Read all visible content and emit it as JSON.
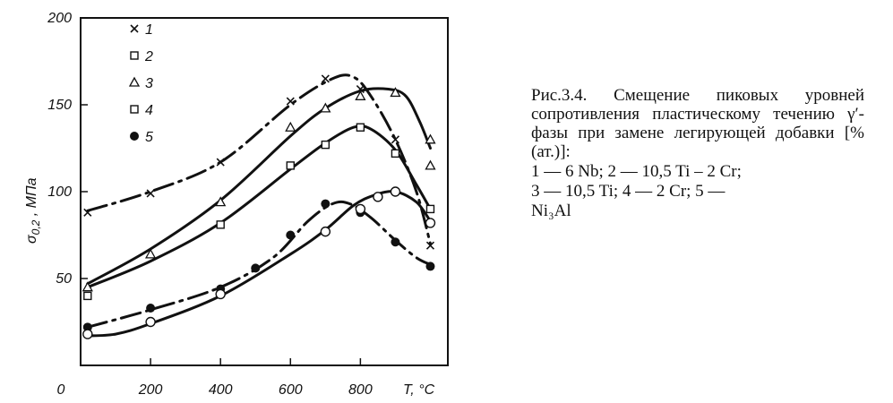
{
  "figure": {
    "caption_title": "Рис.3.4. Смещение пиковых уровней сопротивления пласти­ческому течению γ′-фазы при замене легирующей добавки [% (ат.)]:",
    "caption_legend_1": "1 —  6 Nb;  2 —  10,5 Ti – 2 Cr;",
    "caption_legend_2": "3 —  10,5 Ti;  4 —  2 Cr;  5 —",
    "caption_legend_3": "Ni₃Al"
  },
  "chart_data": {
    "type": "scatter",
    "xlabel": "T, °C",
    "ylabel": "σ0,2 , МПа",
    "xlim": [
      0,
      1050
    ],
    "ylim": [
      0,
      200
    ],
    "x_ticks": [
      "0",
      "200",
      "400",
      "600",
      "800"
    ],
    "y_ticks": [
      "50",
      "100",
      "150",
      "200"
    ],
    "legend_position": "top-left",
    "series": [
      {
        "name": "1",
        "marker": "x",
        "curve": "dash",
        "points": [
          [
            20,
            88
          ],
          [
            200,
            99
          ],
          [
            400,
            117
          ],
          [
            600,
            152
          ],
          [
            700,
            165
          ],
          [
            800,
            159
          ],
          [
            900,
            130
          ],
          [
            1000,
            69
          ]
        ],
        "curve_points": [
          [
            20,
            89
          ],
          [
            200,
            100
          ],
          [
            400,
            117
          ],
          [
            600,
            150
          ],
          [
            720,
            165
          ],
          [
            780,
            166
          ],
          [
            830,
            155
          ],
          [
            900,
            130
          ],
          [
            960,
            100
          ],
          [
            1000,
            70
          ]
        ]
      },
      {
        "name": "2",
        "marker": "square",
        "points": [
          [
            20,
            40
          ],
          [
            400,
            81
          ],
          [
            600,
            115
          ],
          [
            700,
            127
          ],
          [
            800,
            137
          ],
          [
            900,
            122
          ],
          [
            1000,
            90
          ]
        ],
        "curve_points": [
          [
            20,
            45
          ],
          [
            200,
            60
          ],
          [
            400,
            82
          ],
          [
            600,
            113
          ],
          [
            700,
            128
          ],
          [
            780,
            137
          ],
          [
            830,
            136
          ],
          [
            900,
            124
          ],
          [
            960,
            104
          ],
          [
            1000,
            90
          ]
        ]
      },
      {
        "name": "3",
        "marker": "triangle",
        "points": [
          [
            20,
            45
          ],
          [
            200,
            64
          ],
          [
            400,
            94
          ],
          [
            600,
            137
          ],
          [
            700,
            148
          ],
          [
            800,
            155
          ],
          [
            900,
            157
          ],
          [
            1000,
            115
          ],
          [
            1000,
            130
          ]
        ],
        "curve_points": [
          [
            20,
            47
          ],
          [
            200,
            67
          ],
          [
            400,
            95
          ],
          [
            600,
            132
          ],
          [
            700,
            148
          ],
          [
            800,
            158
          ],
          [
            880,
            159
          ],
          [
            930,
            155
          ],
          [
            970,
            140
          ],
          [
            1000,
            125
          ]
        ]
      },
      {
        "name": "5",
        "marker": "filled-circle",
        "curve": "dash",
        "points": [
          [
            20,
            22
          ],
          [
            200,
            33
          ],
          [
            400,
            44
          ],
          [
            500,
            56
          ],
          [
            600,
            75
          ],
          [
            700,
            93
          ],
          [
            800,
            88
          ],
          [
            900,
            71
          ],
          [
            1000,
            57
          ]
        ],
        "curve_points": [
          [
            20,
            22
          ],
          [
            200,
            32
          ],
          [
            400,
            45
          ],
          [
            550,
            62
          ],
          [
            650,
            83
          ],
          [
            720,
            93
          ],
          [
            770,
            93
          ],
          [
            830,
            85
          ],
          [
            900,
            72
          ],
          [
            960,
            62
          ],
          [
            1000,
            58
          ]
        ]
      },
      {
        "name": "4",
        "marker": "open-circle",
        "points": [
          [
            20,
            18
          ],
          [
            200,
            25
          ],
          [
            400,
            41
          ],
          [
            700,
            77
          ],
          [
            800,
            90
          ],
          [
            850,
            97
          ],
          [
            900,
            100
          ],
          [
            1000,
            82
          ]
        ],
        "curve_points": [
          [
            20,
            17
          ],
          [
            100,
            18
          ],
          [
            200,
            24
          ],
          [
            400,
            40
          ],
          [
            600,
            64
          ],
          [
            700,
            78
          ],
          [
            780,
            92
          ],
          [
            840,
            98
          ],
          [
            900,
            100
          ],
          [
            960,
            94
          ],
          [
            1000,
            83
          ]
        ]
      }
    ]
  }
}
